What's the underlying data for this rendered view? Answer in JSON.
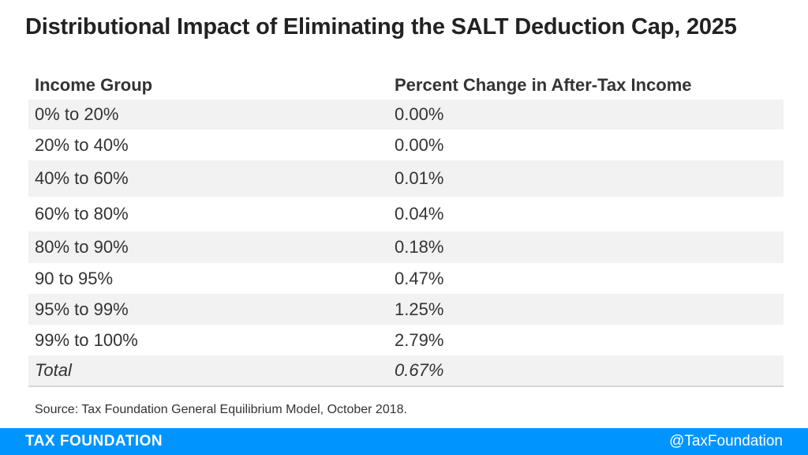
{
  "chart_data": {
    "type": "table",
    "title": "Distributional Impact of Eliminating the SALT Deduction Cap, 2025",
    "columns": [
      "Income Group",
      "Percent Change in After-Tax Income"
    ],
    "rows": [
      {
        "group": "0% to 20%",
        "value": "0.00%"
      },
      {
        "group": "20% to 40%",
        "value": "0.00%"
      },
      {
        "group": "40% to 60%",
        "value": "0.01%"
      },
      {
        "group": "60% to 80%",
        "value": "0.04%"
      },
      {
        "group": "80% to 90%",
        "value": "0.18%"
      },
      {
        "group": "90 to 95%",
        "value": "0.47%"
      },
      {
        "group": "95% to 99%",
        "value": "1.25%"
      },
      {
        "group": "99% to 100%",
        "value": "2.79%"
      },
      {
        "group": "Total",
        "value": "0.67%"
      }
    ],
    "source": "Source: Tax Foundation General Equilibrium Model, October 2018."
  },
  "footer": {
    "brand": "TAX FOUNDATION",
    "handle": "@TaxFoundation"
  },
  "colors": {
    "footer_bg": "#0094ff",
    "row_shade": "#f2f2f2"
  }
}
